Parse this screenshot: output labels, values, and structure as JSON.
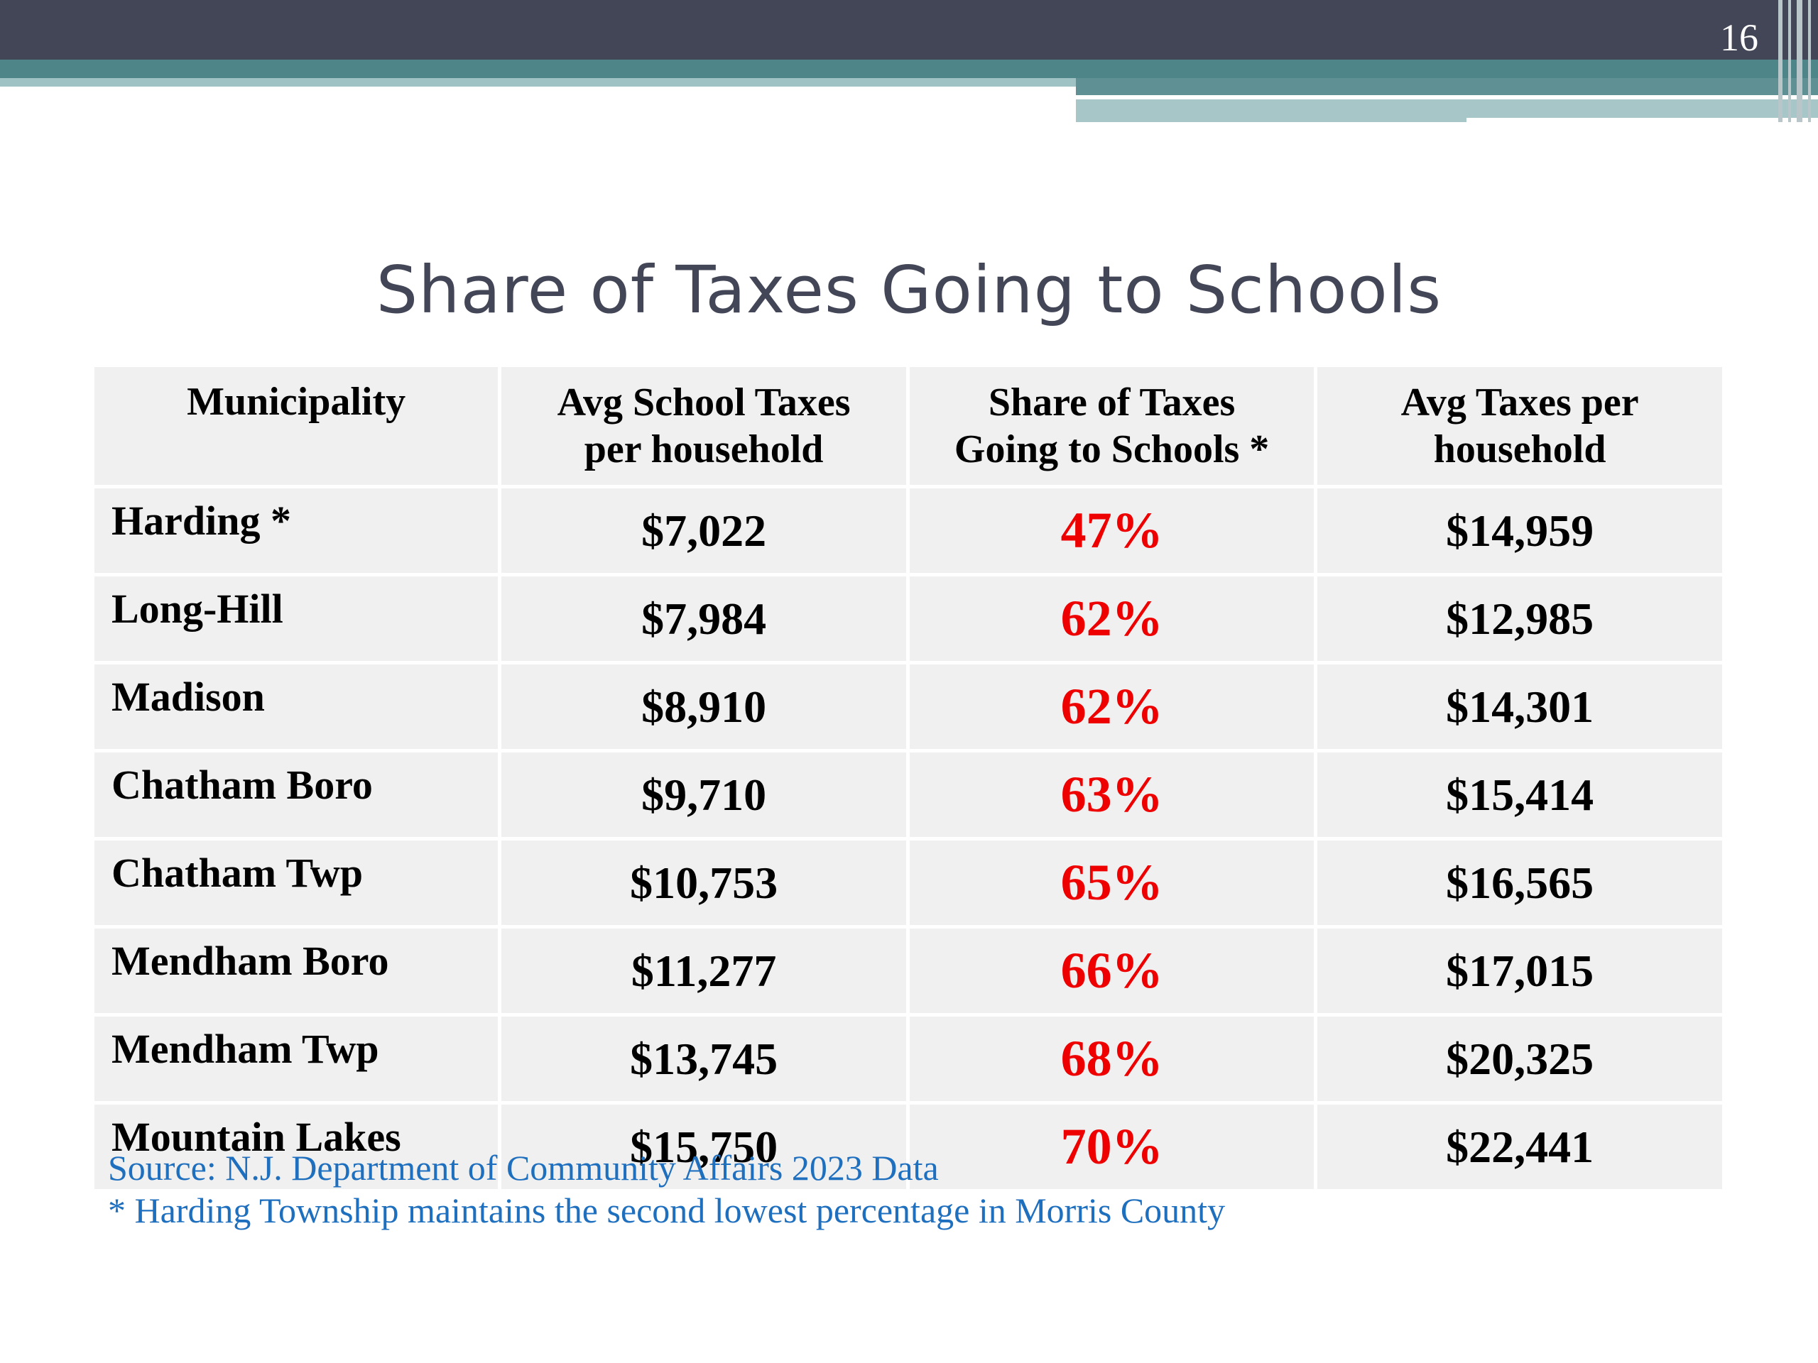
{
  "slide_number": "16",
  "title": "Share of Taxes Going to Schools",
  "table": {
    "headers": [
      [
        "Municipality",
        ""
      ],
      [
        "Avg School Taxes",
        "per household"
      ],
      [
        "Share of Taxes",
        "Going to Schools *"
      ],
      [
        "Avg Taxes per",
        "household"
      ]
    ],
    "rows": [
      [
        "Harding *",
        "$7,022",
        "47%",
        "$14,959"
      ],
      [
        "Long-Hill",
        "$7,984",
        "62%",
        "$12,985"
      ],
      [
        "Madison",
        "$8,910",
        "62%",
        "$14,301"
      ],
      [
        "Chatham Boro",
        "$9,710",
        "63%",
        "$15,414"
      ],
      [
        "Chatham Twp",
        "$10,753",
        "65%",
        "$16,565"
      ],
      [
        "Mendham Boro",
        "$11,277",
        "66%",
        "$17,015"
      ],
      [
        "Mendham Twp",
        "$13,745",
        "68%",
        "$20,325"
      ],
      [
        "Mountain Lakes",
        "$15,750",
        "70%",
        "$22,441"
      ]
    ]
  },
  "source_lines": [
    "Source: N.J. Department of Community Affairs 2023 Data",
    "* Harding Township maintains the second lowest percentage in Morris County"
  ],
  "colors": {
    "header_band": "#434656",
    "accent_teal": "#4e8589",
    "percent_text": "#ee0000",
    "source_text": "#1f6fbf",
    "cell_bg": "#f0f0f0"
  }
}
